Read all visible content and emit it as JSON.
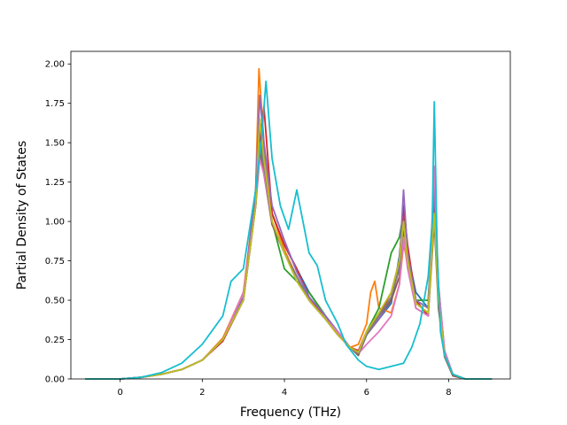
{
  "chart_data": {
    "type": "line",
    "title": "",
    "xlabel": "Frequency (THz)",
    "ylabel": "Partial Density of States",
    "xlim": [
      -1.2,
      9.5
    ],
    "ylim": [
      0,
      2.08
    ],
    "xticks": [
      0,
      2,
      4,
      6,
      8
    ],
    "xtick_labels": [
      "0",
      "2",
      "4",
      "6",
      "8"
    ],
    "yticks": [
      0,
      0.25,
      0.5,
      0.75,
      1.0,
      1.25,
      1.5,
      1.75,
      2.0
    ],
    "ytick_labels": [
      "0.00",
      "0.25",
      "0.50",
      "0.75",
      "1.00",
      "1.25",
      "1.50",
      "1.75",
      "2.00"
    ],
    "grid": false,
    "legend": "none",
    "colors": [
      "#1f77b4",
      "#ff7f0e",
      "#2ca02c",
      "#d62728",
      "#9467bd",
      "#8c564b",
      "#e377c2",
      "#7f7f7f",
      "#bcbd22",
      "#17becf"
    ],
    "series": [
      {
        "color": "#1f77b4",
        "x": [
          -0.85,
          0,
          0.5,
          1,
          1.5,
          2,
          2.5,
          3,
          3.3,
          3.4,
          3.5,
          3.7,
          4,
          4.3,
          4.6,
          5,
          5.3,
          5.6,
          5.8,
          6,
          6.3,
          6.6,
          6.8,
          6.9,
          7,
          7.2,
          7.5,
          7.65,
          7.75,
          7.9,
          8.1,
          8.4,
          9.05
        ],
        "y": [
          0,
          0,
          0.01,
          0.03,
          0.06,
          0.12,
          0.25,
          0.52,
          1.1,
          1.55,
          1.45,
          1.05,
          0.85,
          0.7,
          0.55,
          0.4,
          0.3,
          0.2,
          0.15,
          0.28,
          0.38,
          0.48,
          0.78,
          1.05,
          0.8,
          0.55,
          0.45,
          1.25,
          0.6,
          0.18,
          0.03,
          0,
          0
        ]
      },
      {
        "color": "#ff7f0e",
        "x": [
          -0.85,
          0,
          0.5,
          1,
          1.5,
          2,
          2.5,
          3,
          3.3,
          3.38,
          3.5,
          3.7,
          4,
          4.3,
          4.6,
          5,
          5.3,
          5.6,
          5.8,
          6,
          6.1,
          6.2,
          6.3,
          6.6,
          6.8,
          6.9,
          7,
          7.2,
          7.5,
          7.65,
          7.75,
          7.9,
          8.1,
          8.4,
          9.05
        ],
        "y": [
          0,
          0,
          0.01,
          0.03,
          0.06,
          0.12,
          0.26,
          0.55,
          1.2,
          1.97,
          1.5,
          1.05,
          0.82,
          0.65,
          0.5,
          0.38,
          0.28,
          0.2,
          0.22,
          0.35,
          0.55,
          0.62,
          0.45,
          0.42,
          0.6,
          0.85,
          0.75,
          0.5,
          0.45,
          1.1,
          0.5,
          0.15,
          0.02,
          0,
          0
        ]
      },
      {
        "color": "#2ca02c",
        "x": [
          -0.85,
          0,
          0.5,
          1,
          1.5,
          2,
          2.5,
          3,
          3.3,
          3.4,
          3.5,
          3.7,
          4,
          4.3,
          4.6,
          5,
          5.3,
          5.6,
          5.8,
          6,
          6.3,
          6.6,
          6.8,
          6.9,
          7,
          7.2,
          7.5,
          7.65,
          7.75,
          7.9,
          8.1,
          8.4,
          9.05
        ],
        "y": [
          0,
          0,
          0.01,
          0.03,
          0.06,
          0.12,
          0.25,
          0.5,
          1.1,
          1.6,
          1.35,
          1.0,
          0.7,
          0.62,
          0.55,
          0.4,
          0.3,
          0.2,
          0.16,
          0.3,
          0.45,
          0.8,
          0.9,
          1.05,
          0.8,
          0.5,
          0.5,
          1.15,
          0.55,
          0.16,
          0.03,
          0,
          0
        ]
      },
      {
        "color": "#d62728",
        "x": [
          -0.85,
          0,
          0.5,
          1,
          1.5,
          2,
          2.5,
          3,
          3.3,
          3.4,
          3.5,
          3.7,
          4,
          4.3,
          4.6,
          5,
          5.3,
          5.6,
          5.8,
          6,
          6.3,
          6.6,
          6.8,
          6.9,
          7,
          7.2,
          7.5,
          7.65,
          7.75,
          7.9,
          8.1,
          8.4,
          9.05
        ],
        "y": [
          0,
          0,
          0.01,
          0.03,
          0.06,
          0.12,
          0.24,
          0.5,
          1.15,
          1.5,
          1.73,
          1.05,
          0.85,
          0.7,
          0.52,
          0.38,
          0.3,
          0.2,
          0.18,
          0.3,
          0.4,
          0.55,
          0.75,
          1.1,
          0.85,
          0.5,
          0.4,
          1.1,
          0.5,
          0.15,
          0.03,
          0,
          0
        ]
      },
      {
        "color": "#9467bd",
        "x": [
          -0.85,
          0,
          0.5,
          1,
          1.5,
          2,
          2.5,
          3,
          3.3,
          3.4,
          3.5,
          3.7,
          4,
          4.3,
          4.6,
          5,
          5.3,
          5.6,
          5.8,
          6,
          6.3,
          6.6,
          6.8,
          6.9,
          7,
          7.2,
          7.5,
          7.65,
          7.75,
          7.9,
          8.1,
          8.4,
          9.05
        ],
        "y": [
          0,
          0,
          0.01,
          0.03,
          0.06,
          0.12,
          0.25,
          0.52,
          1.2,
          1.8,
          1.5,
          1.1,
          0.88,
          0.68,
          0.52,
          0.4,
          0.3,
          0.2,
          0.17,
          0.28,
          0.38,
          0.5,
          0.72,
          1.2,
          0.8,
          0.5,
          0.45,
          1.2,
          0.55,
          0.17,
          0.03,
          0,
          0
        ]
      },
      {
        "color": "#8c564b",
        "x": [
          -0.85,
          0,
          0.5,
          1,
          1.5,
          2,
          2.5,
          3,
          3.3,
          3.4,
          3.5,
          3.7,
          4,
          4.3,
          4.6,
          5,
          5.3,
          5.6,
          5.8,
          6,
          6.3,
          6.6,
          6.8,
          6.9,
          7,
          7.2,
          7.5,
          7.65,
          7.75,
          7.9,
          8.1,
          8.4,
          9.05
        ],
        "y": [
          0,
          0,
          0.01,
          0.03,
          0.06,
          0.12,
          0.25,
          0.5,
          1.1,
          1.45,
          1.3,
          0.98,
          0.8,
          0.65,
          0.5,
          0.38,
          0.28,
          0.2,
          0.15,
          0.28,
          0.4,
          0.5,
          0.65,
          0.95,
          0.75,
          0.45,
          0.4,
          1.0,
          0.45,
          0.14,
          0.02,
          0,
          0
        ]
      },
      {
        "color": "#e377c2",
        "x": [
          -0.85,
          0,
          0.5,
          1,
          1.5,
          2,
          2.5,
          3,
          3.3,
          3.4,
          3.5,
          3.7,
          4,
          4.3,
          4.6,
          5,
          5.3,
          5.6,
          5.8,
          6,
          6.3,
          6.6,
          6.8,
          6.9,
          7,
          7.2,
          7.5,
          7.65,
          7.75,
          7.9,
          8.1,
          8.4,
          9.05
        ],
        "y": [
          0,
          0,
          0.01,
          0.03,
          0.06,
          0.12,
          0.25,
          0.55,
          1.1,
          1.4,
          1.3,
          1.0,
          0.8,
          0.65,
          0.5,
          0.38,
          0.3,
          0.2,
          0.16,
          0.22,
          0.3,
          0.4,
          0.6,
          0.9,
          0.7,
          0.45,
          0.4,
          1.35,
          0.6,
          0.18,
          0.03,
          0,
          0
        ]
      },
      {
        "color": "#7f7f7f",
        "x": [
          -0.85,
          0,
          0.5,
          1,
          1.5,
          2,
          2.5,
          3,
          3.3,
          3.4,
          3.5,
          3.7,
          4,
          4.3,
          4.6,
          5,
          5.3,
          5.6,
          5.8,
          6,
          6.3,
          6.6,
          6.8,
          6.9,
          7,
          7.2,
          7.5,
          7.65,
          7.75,
          7.9,
          8.1,
          8.4,
          9.05
        ],
        "y": [
          0,
          0,
          0.01,
          0.03,
          0.06,
          0.12,
          0.25,
          0.5,
          1.1,
          1.5,
          1.35,
          1.0,
          0.8,
          0.65,
          0.5,
          0.38,
          0.28,
          0.2,
          0.16,
          0.28,
          0.4,
          0.52,
          0.7,
          1.0,
          0.78,
          0.48,
          0.42,
          1.05,
          0.5,
          0.15,
          0.03,
          0,
          0
        ]
      },
      {
        "color": "#bcbd22",
        "x": [
          -0.85,
          0,
          0.5,
          1,
          1.5,
          2,
          2.5,
          3,
          3.3,
          3.4,
          3.5,
          3.7,
          4,
          4.3,
          4.6,
          5,
          5.3,
          5.6,
          5.8,
          6,
          6.3,
          6.6,
          6.8,
          6.9,
          7,
          7.2,
          7.5,
          7.65,
          7.75,
          7.9,
          8.1,
          8.4,
          9.05
        ],
        "y": [
          0,
          0,
          0.01,
          0.03,
          0.06,
          0.12,
          0.25,
          0.5,
          1.1,
          1.65,
          1.4,
          1.0,
          0.8,
          0.62,
          0.5,
          0.38,
          0.28,
          0.2,
          0.17,
          0.3,
          0.42,
          0.55,
          0.75,
          1.0,
          0.75,
          0.48,
          0.42,
          1.05,
          0.5,
          0.15,
          0.03,
          0,
          0
        ]
      },
      {
        "color": "#17becf",
        "x": [
          -0.85,
          0,
          0.5,
          1,
          1.5,
          2,
          2.5,
          2.7,
          3,
          3.3,
          3.45,
          3.55,
          3.7,
          3.9,
          4.1,
          4.3,
          4.6,
          4.8,
          5,
          5.3,
          5.5,
          5.8,
          6,
          6.3,
          6.6,
          6.9,
          7.1,
          7.3,
          7.5,
          7.6,
          7.65,
          7.72,
          7.8,
          7.9,
          8.1,
          8.4,
          9.05
        ],
        "y": [
          0,
          0,
          0.01,
          0.04,
          0.1,
          0.22,
          0.4,
          0.62,
          0.7,
          1.2,
          1.55,
          1.89,
          1.4,
          1.1,
          0.95,
          1.2,
          0.8,
          0.72,
          0.5,
          0.35,
          0.22,
          0.12,
          0.08,
          0.06,
          0.08,
          0.1,
          0.2,
          0.35,
          0.65,
          1.0,
          1.76,
          0.8,
          0.3,
          0.15,
          0.03,
          0,
          0
        ]
      }
    ]
  }
}
